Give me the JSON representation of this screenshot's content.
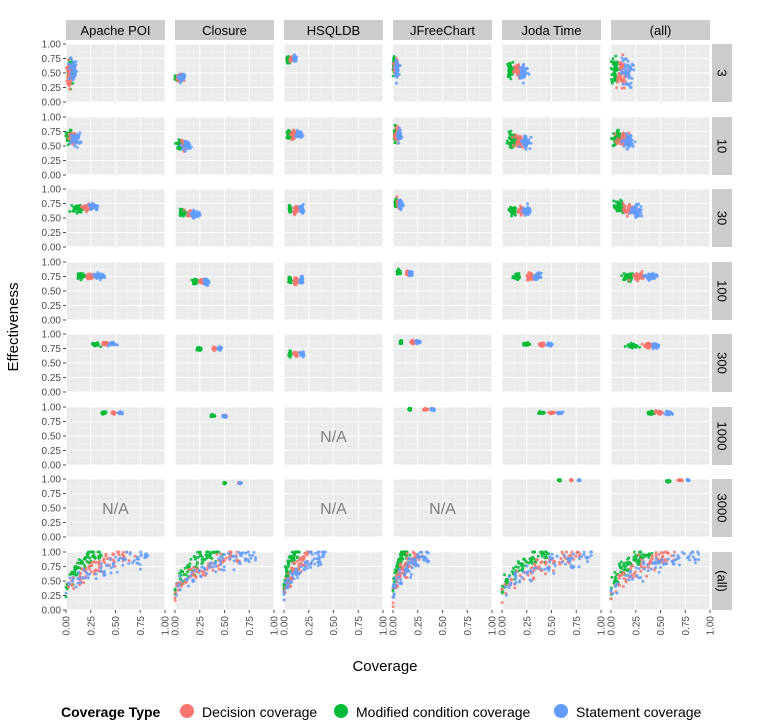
{
  "chart_data": {
    "type": "scatter",
    "facet_grid": true,
    "title": "",
    "xlabel": "Coverage",
    "ylabel": "Effectiveness",
    "xlim": [
      0,
      1
    ],
    "ylim": [
      0,
      1
    ],
    "x_ticks": [
      "0.00",
      "0.25",
      "0.50",
      "0.75",
      "1.00"
    ],
    "y_ticks": [
      "0.00",
      "0.25",
      "0.50",
      "0.75",
      "1.00"
    ],
    "grid": true,
    "columns": [
      "Apache POI",
      "Closure",
      "HSQLDB",
      "JFreeChart",
      "Joda Time",
      "(all)"
    ],
    "rows": [
      "3",
      "10",
      "30",
      "100",
      "300",
      "1000",
      "3000",
      "(all)"
    ],
    "legend": {
      "title": "Coverage Type",
      "position": "bottom",
      "entries": [
        {
          "name": "Decision coverage",
          "color": "#F8766D"
        },
        {
          "name": "Modified condition coverage",
          "color": "#00BA38"
        },
        {
          "name": "Statement coverage",
          "color": "#619CFF"
        }
      ]
    },
    "na_label": "N/A",
    "na_cells": [
      [
        5,
        2
      ],
      [
        6,
        0
      ],
      [
        6,
        2
      ],
      [
        6,
        3
      ]
    ],
    "clusters": [
      [
        [
          0,
          0
        ],
        [
          0.03,
          0.025,
          0.06,
          0.45,
          0.25
        ],
        [
          0.05,
          0.03,
          0.08,
          0.52,
          0.25
        ],
        [
          0.07,
          0.04,
          0.08,
          0.55,
          0.22
        ]
      ],
      [
        [
          0,
          1
        ],
        [
          0.05,
          0.03,
          0.04,
          0.42,
          0.06
        ],
        [
          0.02,
          0.02,
          0.04,
          0.42,
          0.06
        ],
        [
          0.07,
          0.03,
          0.04,
          0.42,
          0.06
        ]
      ],
      [
        [
          0,
          2
        ],
        [
          0.08,
          0.02,
          0.03,
          0.74,
          0.05
        ],
        [
          0.04,
          0.015,
          0.03,
          0.73,
          0.05
        ],
        [
          0.11,
          0.02,
          0.03,
          0.74,
          0.05
        ]
      ],
      [
        [
          0,
          3
        ],
        [
          0.03,
          0.02,
          0.06,
          0.6,
          0.14
        ],
        [
          0.01,
          0.008,
          0.05,
          0.62,
          0.15
        ],
        [
          0.04,
          0.02,
          0.05,
          0.58,
          0.14
        ]
      ],
      [
        [
          0,
          4
        ],
        [
          0.16,
          0.04,
          0.08,
          0.53,
          0.15
        ],
        [
          0.08,
          0.03,
          0.08,
          0.55,
          0.15
        ],
        [
          0.22,
          0.05,
          0.08,
          0.52,
          0.15
        ]
      ],
      [
        [
          0,
          5
        ],
        [
          0.1,
          0.06,
          0.1,
          0.5,
          0.3
        ],
        [
          0.04,
          0.03,
          0.1,
          0.55,
          0.3
        ],
        [
          0.16,
          0.06,
          0.1,
          0.5,
          0.3
        ]
      ],
      [
        [
          1,
          0
        ],
        [
          0.07,
          0.04,
          0.04,
          0.62,
          0.12
        ],
        [
          0.03,
          0.03,
          0.04,
          0.65,
          0.13
        ],
        [
          0.1,
          0.05,
          0.04,
          0.62,
          0.12
        ]
      ],
      [
        [
          1,
          1
        ],
        [
          0.1,
          0.04,
          0.05,
          0.52,
          0.08
        ],
        [
          0.05,
          0.03,
          0.05,
          0.53,
          0.08
        ],
        [
          0.13,
          0.04,
          0.05,
          0.51,
          0.08
        ]
      ],
      [
        [
          1,
          2
        ],
        [
          0.1,
          0.03,
          0.04,
          0.7,
          0.07
        ],
        [
          0.05,
          0.02,
          0.04,
          0.7,
          0.07
        ],
        [
          0.15,
          0.03,
          0.04,
          0.7,
          0.07
        ]
      ],
      [
        [
          1,
          3
        ],
        [
          0.04,
          0.02,
          0.06,
          0.68,
          0.12
        ],
        [
          0.02,
          0.01,
          0.06,
          0.7,
          0.13
        ],
        [
          0.06,
          0.02,
          0.06,
          0.67,
          0.12
        ]
      ],
      [
        [
          1,
          4
        ],
        [
          0.18,
          0.05,
          0.08,
          0.58,
          0.13
        ],
        [
          0.1,
          0.04,
          0.08,
          0.6,
          0.13
        ],
        [
          0.24,
          0.05,
          0.08,
          0.58,
          0.13
        ]
      ],
      [
        [
          1,
          5
        ],
        [
          0.12,
          0.06,
          0.12,
          0.6,
          0.14
        ],
        [
          0.05,
          0.04,
          0.12,
          0.63,
          0.15
        ],
        [
          0.18,
          0.06,
          0.12,
          0.58,
          0.14
        ]
      ],
      [
        [
          2,
          0
        ],
        [
          0.22,
          0.05,
          0.06,
          0.68,
          0.07
        ],
        [
          0.12,
          0.05,
          0.06,
          0.66,
          0.07
        ],
        [
          0.28,
          0.05,
          0.06,
          0.7,
          0.07
        ]
      ],
      [
        [
          2,
          1
        ],
        [
          0.16,
          0.04,
          0.05,
          0.58,
          0.06
        ],
        [
          0.08,
          0.03,
          0.05,
          0.6,
          0.06
        ],
        [
          0.2,
          0.04,
          0.05,
          0.57,
          0.06
        ]
      ],
      [
        [
          2,
          2
        ],
        [
          0.12,
          0.02,
          0.03,
          0.65,
          0.07
        ],
        [
          0.06,
          0.01,
          0.03,
          0.65,
          0.07
        ],
        [
          0.18,
          0.02,
          0.03,
          0.65,
          0.07
        ]
      ],
      [
        [
          2,
          3
        ],
        [
          0.06,
          0.02,
          0.05,
          0.74,
          0.08
        ],
        [
          0.03,
          0.01,
          0.05,
          0.76,
          0.08
        ],
        [
          0.08,
          0.02,
          0.05,
          0.73,
          0.08
        ]
      ],
      [
        [
          2,
          4
        ],
        [
          0.2,
          0.04,
          0.06,
          0.63,
          0.08
        ],
        [
          0.1,
          0.03,
          0.06,
          0.64,
          0.08
        ],
        [
          0.25,
          0.04,
          0.06,
          0.62,
          0.08
        ]
      ],
      [
        [
          2,
          5
        ],
        [
          0.18,
          0.06,
          0.1,
          0.65,
          0.12
        ],
        [
          0.08,
          0.05,
          0.1,
          0.68,
          0.12
        ],
        [
          0.26,
          0.06,
          0.1,
          0.62,
          0.12
        ]
      ],
      [
        [
          3,
          0
        ],
        [
          0.25,
          0.04,
          0.05,
          0.75,
          0.05
        ],
        [
          0.15,
          0.04,
          0.05,
          0.76,
          0.05
        ],
        [
          0.33,
          0.05,
          0.05,
          0.76,
          0.05
        ]
      ],
      [
        [
          3,
          1
        ],
        [
          0.28,
          0.03,
          0.04,
          0.66,
          0.05
        ],
        [
          0.2,
          0.02,
          0.04,
          0.67,
          0.05
        ],
        [
          0.32,
          0.03,
          0.04,
          0.66,
          0.05
        ]
      ],
      [
        [
          3,
          2
        ],
        [
          0.12,
          0.02,
          0.03,
          0.68,
          0.06
        ],
        [
          0.06,
          0.01,
          0.03,
          0.68,
          0.06
        ],
        [
          0.18,
          0.02,
          0.03,
          0.68,
          0.06
        ]
      ],
      [
        [
          3,
          3
        ],
        [
          0.15,
          0.02,
          0.04,
          0.8,
          0.04
        ],
        [
          0.06,
          0.02,
          0.04,
          0.82,
          0.04
        ],
        [
          0.18,
          0.02,
          0.04,
          0.8,
          0.04
        ]
      ],
      [
        [
          3,
          4
        ],
        [
          0.28,
          0.03,
          0.06,
          0.75,
          0.06
        ],
        [
          0.15,
          0.03,
          0.06,
          0.76,
          0.06
        ],
        [
          0.36,
          0.03,
          0.06,
          0.75,
          0.06
        ]
      ],
      [
        [
          3,
          5
        ],
        [
          0.28,
          0.08,
          0.06,
          0.75,
          0.07
        ],
        [
          0.18,
          0.06,
          0.06,
          0.74,
          0.07
        ],
        [
          0.4,
          0.06,
          0.06,
          0.74,
          0.07
        ]
      ],
      [
        [
          4,
          0
        ],
        [
          0.4,
          0.03,
          0.03,
          0.83,
          0.03
        ],
        [
          0.3,
          0.04,
          0.03,
          0.82,
          0.03
        ],
        [
          0.47,
          0.04,
          0.03,
          0.83,
          0.03
        ]
      ],
      [
        [
          4,
          1
        ],
        [
          0.4,
          0.02,
          0.03,
          0.75,
          0.03
        ],
        [
          0.25,
          0.02,
          0.03,
          0.74,
          0.03
        ],
        [
          0.45,
          0.02,
          0.03,
          0.75,
          0.03
        ]
      ],
      [
        [
          4,
          2
        ],
        [
          0.12,
          0.02,
          0.03,
          0.65,
          0.05
        ],
        [
          0.06,
          0.01,
          0.03,
          0.65,
          0.05
        ],
        [
          0.18,
          0.02,
          0.03,
          0.65,
          0.05
        ]
      ],
      [
        [
          4,
          3
        ],
        [
          0.2,
          0.02,
          0.03,
          0.86,
          0.03
        ],
        [
          0.08,
          0.01,
          0.03,
          0.86,
          0.03
        ],
        [
          0.25,
          0.02,
          0.03,
          0.86,
          0.03
        ]
      ],
      [
        [
          4,
          4
        ],
        [
          0.4,
          0.03,
          0.03,
          0.82,
          0.03
        ],
        [
          0.25,
          0.03,
          0.03,
          0.82,
          0.03
        ],
        [
          0.48,
          0.03,
          0.03,
          0.82,
          0.03
        ]
      ],
      [
        [
          4,
          5
        ],
        [
          0.38,
          0.06,
          0.05,
          0.8,
          0.05
        ],
        [
          0.22,
          0.06,
          0.05,
          0.8,
          0.05
        ],
        [
          0.45,
          0.04,
          0.05,
          0.8,
          0.05
        ]
      ],
      [
        [
          5,
          0
        ],
        [
          0.48,
          0.02,
          0.02,
          0.9,
          0.02
        ],
        [
          0.38,
          0.02,
          0.02,
          0.9,
          0.02
        ],
        [
          0.55,
          0.02,
          0.02,
          0.9,
          0.02
        ]
      ],
      [
        [
          5,
          1
        ],
        [
          0.5,
          0.02,
          0.02,
          0.85,
          0.02
        ],
        [
          0.38,
          0.02,
          0.02,
          0.85,
          0.02
        ],
        [
          0.5,
          0.02,
          0.02,
          0.84,
          0.02
        ]
      ],
      [
        [
          5,
          3
        ],
        [
          0.33,
          0.02,
          0.02,
          0.96,
          0.02
        ],
        [
          0.17,
          0.01,
          0.02,
          0.96,
          0.02
        ],
        [
          0.4,
          0.02,
          0.02,
          0.96,
          0.02
        ]
      ],
      [
        [
          5,
          4
        ],
        [
          0.5,
          0.03,
          0.02,
          0.9,
          0.02
        ],
        [
          0.4,
          0.03,
          0.02,
          0.9,
          0.02
        ],
        [
          0.58,
          0.03,
          0.02,
          0.9,
          0.02
        ]
      ],
      [
        [
          5,
          5
        ],
        [
          0.48,
          0.04,
          0.04,
          0.9,
          0.03
        ],
        [
          0.4,
          0.04,
          0.04,
          0.9,
          0.03
        ],
        [
          0.58,
          0.04,
          0.04,
          0.89,
          0.03
        ]
      ],
      [
        [
          6,
          1
        ],
        [
          0.65,
          0.01,
          0.01,
          0.93,
          0.01
        ],
        [
          0.5,
          0.01,
          0.01,
          0.93,
          0.01
        ],
        [
          0.66,
          0.01,
          0.01,
          0.93,
          0.01
        ]
      ],
      [
        [
          6,
          4
        ],
        [
          0.7,
          0.01,
          0.01,
          0.98,
          0.01
        ],
        [
          0.58,
          0.01,
          0.01,
          0.98,
          0.01
        ],
        [
          0.78,
          0.01,
          0.01,
          0.98,
          0.01
        ]
      ],
      [
        [
          6,
          5
        ],
        [
          0.7,
          0.02,
          0.02,
          0.98,
          0.01
        ],
        [
          0.58,
          0.02,
          0.02,
          0.96,
          0.02
        ],
        [
          0.78,
          0.01,
          0.02,
          0.98,
          0.01
        ]
      ],
      [
        [
          7,
          0
        ],
        [
          0.3,
          0.15,
          0.3,
          0.62,
          0.25
        ],
        [
          0.15,
          0.12,
          0.3,
          0.65,
          0.3
        ],
        [
          0.38,
          0.18,
          0.3,
          0.6,
          0.25
        ]
      ],
      [
        [
          7,
          1
        ],
        [
          0.3,
          0.2,
          0.3,
          0.58,
          0.3
        ],
        [
          0.2,
          0.18,
          0.3,
          0.62,
          0.3
        ],
        [
          0.36,
          0.2,
          0.3,
          0.55,
          0.3
        ]
      ],
      [
        [
          7,
          2
        ],
        [
          0.12,
          0.03,
          0.06,
          0.7,
          0.07
        ],
        [
          0.06,
          0.02,
          0.06,
          0.7,
          0.07
        ],
        [
          0.18,
          0.03,
          0.06,
          0.7,
          0.07
        ]
      ],
      [
        [
          7,
          3
        ],
        [
          0.12,
          0.08,
          0.2,
          0.72,
          0.2
        ],
        [
          0.06,
          0.05,
          0.2,
          0.75,
          0.2
        ],
        [
          0.16,
          0.08,
          0.2,
          0.7,
          0.2
        ]
      ],
      [
        [
          7,
          4
        ],
        [
          0.35,
          0.2,
          0.3,
          0.6,
          0.3
        ],
        [
          0.22,
          0.18,
          0.3,
          0.65,
          0.3
        ],
        [
          0.42,
          0.2,
          0.3,
          0.58,
          0.3
        ]
      ],
      [
        [
          7,
          5
        ],
        [
          0.3,
          0.2,
          0.3,
          0.6,
          0.3
        ],
        [
          0.18,
          0.18,
          0.3,
          0.65,
          0.3
        ],
        [
          0.4,
          0.2,
          0.3,
          0.58,
          0.3
        ]
      ]
    ]
  }
}
